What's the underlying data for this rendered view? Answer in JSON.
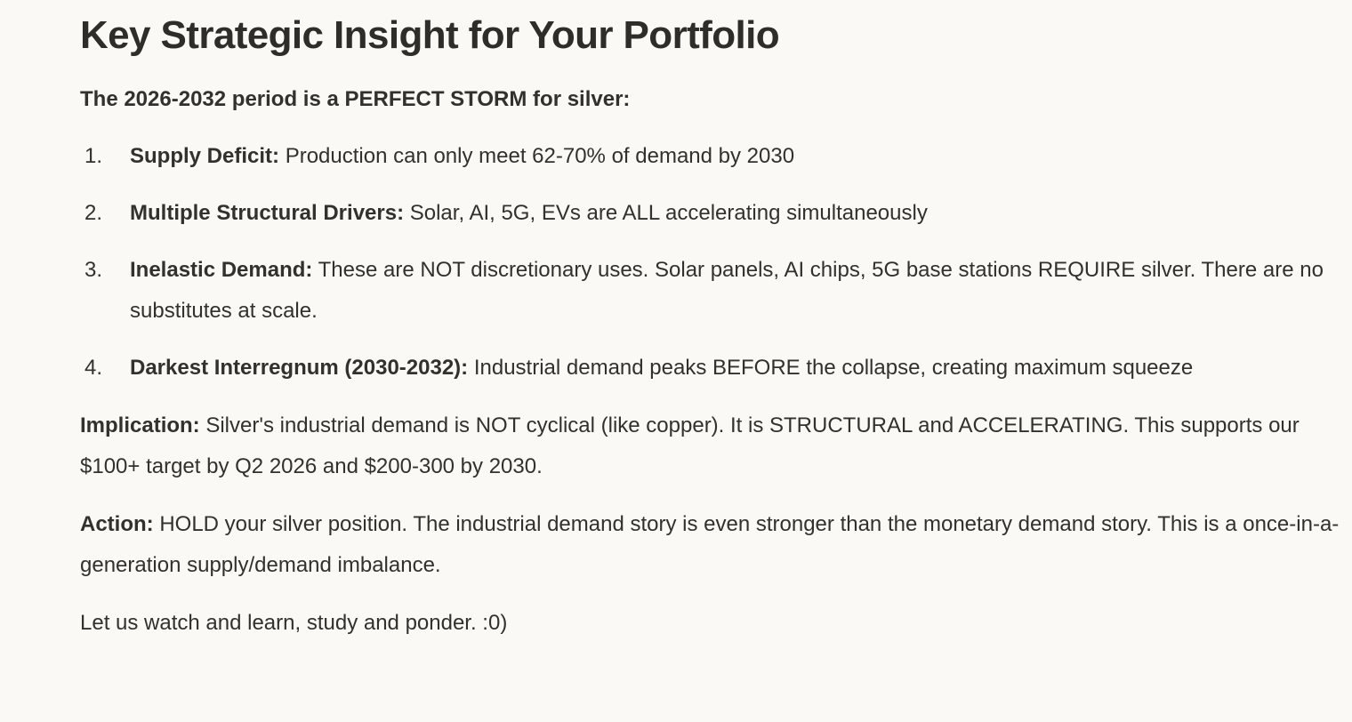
{
  "page": {
    "background_color": "#faf9f5",
    "text_color": "#32312c"
  },
  "heading": "Key Strategic Insight for Your Portfolio",
  "intro": "The 2026-2032 period is a PERFECT STORM for silver:",
  "list": {
    "items": [
      {
        "number": "1.",
        "label": "Supply Deficit:",
        "text": "Production can only meet 62-70% of demand by 2030"
      },
      {
        "number": "2.",
        "label": "Multiple Structural Drivers:",
        "text": "Solar, AI, 5G, EVs are ALL accelerating simultaneously"
      },
      {
        "number": "3.",
        "label": "Inelastic Demand:",
        "text": "These are NOT discretionary uses. Solar panels, AI chips, 5G base stations REQUIRE silver. There are no substitutes at scale."
      },
      {
        "number": "4.",
        "label": "Darkest Interregnum (2030-2032):",
        "text": "Industrial demand peaks BEFORE the collapse, creating maximum squeeze"
      }
    ]
  },
  "implication": {
    "label": "Implication:",
    "text": "Silver's industrial demand is NOT cyclical (like copper). It is STRUCTURAL and ACCELERATING. This supports our $100+ target by Q2 2026 and $200-300 by 2030."
  },
  "action": {
    "label": "Action:",
    "text": "HOLD your silver position. The industrial demand story is even stronger than the monetary demand story. This is a once-in-a-generation supply/demand imbalance."
  },
  "closing": "Let us watch and learn, study and ponder. :0)"
}
